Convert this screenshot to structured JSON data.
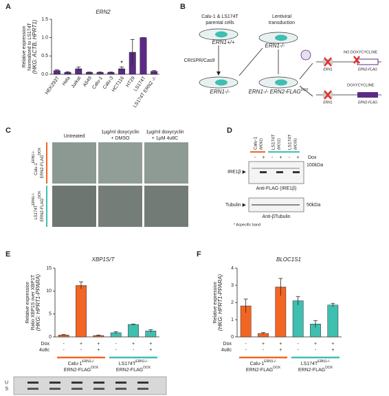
{
  "panel_letters": [
    "A",
    "B",
    "C",
    "D",
    "E",
    "F"
  ],
  "chart_data": [
    {
      "type": "bar",
      "title": "ERN2",
      "ylabel": [
        "Relative expression",
        "Normalized to LS174T",
        "(HKG: ACTB, HPRT1)"
      ],
      "categories": [
        "HEK293T",
        "Hela",
        "Jurkat",
        "A549",
        "Calu-1",
        "Calu-3",
        "HCT116",
        "HT29",
        "LS174T",
        "LS174T ERN2 -/-"
      ],
      "values": [
        0.1,
        0.05,
        0.15,
        0.05,
        0.05,
        0.05,
        0.15,
        0.6,
        1.0,
        0.08
      ],
      "errors": [
        0.02,
        0.02,
        0.05,
        0.01,
        0.01,
        0.01,
        0.05,
        0.35,
        0.0,
        0.02
      ],
      "color": "#5b2a86",
      "annotation": "*",
      "ylim": [
        0,
        1.5
      ],
      "yticks": [
        {
          "value": 0,
          "label": "0.0"
        },
        {
          "value": 0.5,
          "label": "0.5"
        },
        {
          "value": 1,
          "label": "1.0"
        },
        {
          "value": 1.5,
          "label": "1.5"
        }
      ]
    },
    {
      "type": "bar",
      "title": "XBP1S/T",
      "ylabel": [
        "Relative expression",
        "Ratio XBP1S over XBP1T",
        "(HKG: HPRT1-PPARA)"
      ],
      "values": [
        0.4,
        11.2,
        0.3,
        0.9,
        2.7,
        1.3
      ],
      "errors": [
        0.1,
        0.8,
        0.1,
        0.2,
        0.1,
        0.3
      ],
      "colors": [
        "#f26522",
        "#f26522",
        "#f26522",
        "#3fbfb0",
        "#3fbfb0",
        "#3fbfb0"
      ],
      "rows": [
        {
          "name": "Dox",
          "values": [
            "-",
            "+",
            "+",
            "-",
            "+",
            "+"
          ]
        },
        {
          "name": "4u8c",
          "values": [
            "-",
            "-",
            "+",
            "-",
            "-",
            "+"
          ]
        }
      ],
      "groups": [
        {
          "label": "Calu-1",
          "sup": "ERN1-/-",
          "label2": "ERN2-FLAG",
          "sup2": "DOX",
          "color": "#f26522"
        },
        {
          "label": "LS174T",
          "sup": "ERN1-/-",
          "label2": "ERN2-FLAG",
          "sup2": "DOX",
          "color": "#3fbfb0"
        }
      ],
      "gel_labels": [
        "U",
        "S"
      ],
      "ylim": [
        0,
        15
      ],
      "yticks": [
        0,
        5,
        10,
        15
      ]
    },
    {
      "type": "bar",
      "title": "BLOC1S1",
      "ylabel": [
        "Relative expression",
        "(HKG: HPRT1-PPARA)"
      ],
      "values": [
        1.8,
        0.2,
        2.9,
        2.1,
        0.75,
        1.85
      ],
      "errors": [
        0.4,
        0.05,
        0.5,
        0.25,
        0.2,
        0.1
      ],
      "colors": [
        "#f26522",
        "#f26522",
        "#f26522",
        "#3fbfb0",
        "#3fbfb0",
        "#3fbfb0"
      ],
      "rows": [
        {
          "name": "Dox",
          "values": [
            "-",
            "+",
            "+",
            "-",
            "+",
            "+"
          ]
        },
        {
          "name": "4u8c",
          "values": [
            "-",
            "-",
            "+",
            "-",
            "-",
            "+"
          ]
        }
      ],
      "groups": [
        {
          "label": "Calu-1",
          "sup": "ERN1-/-",
          "label2": "ERN2-FLAG",
          "sup2": "DOX",
          "color": "#f26522"
        },
        {
          "label": "LS174T",
          "sup": "ERN1-/-",
          "label2": "ERN2-FLAG",
          "sup2": "DOX",
          "color": "#3fbfb0"
        }
      ],
      "ylim": [
        0,
        4
      ],
      "yticks": [
        0,
        1,
        2,
        3,
        4
      ]
    }
  ],
  "diagram": {
    "parental": [
      "Calu-1 & LS174T",
      "parental cells"
    ],
    "wt": "ERN1+/+",
    "crispr": "CRISPR/Cas9",
    "ko": "ERN1-/-",
    "lenti": [
      "Lentiviral",
      "transduction"
    ],
    "ko2": "ERN1-/-",
    "final": "ERN1-/- ERN2-FLAG",
    "final_sup": "DOX",
    "no_dox": "NO DOXYCYCLINE",
    "dox": "DOXYCYCLINE",
    "gene1": "ERN1",
    "gene2": "ERN2-FLAG"
  },
  "micrographs": {
    "columns": [
      "Untreated",
      "1µg/ml doxycyclin",
      "+ DMSO",
      "1µg/ml doxycyclin",
      "+ 1µM 4u8C"
    ],
    "rows": [
      {
        "label": "Calu-1",
        "sup": "ERN1-/-",
        "label2": "ERN2-FLAG",
        "sup2": "DOX"
      },
      {
        "label": "LS174T",
        "sup": "ERN1-/-",
        "label2": "ERN2-FLAG",
        "sup2": "DOX"
      }
    ]
  },
  "blot": {
    "lanes": [
      {
        "name": "Calu-1",
        "clone": "(MO62)"
      },
      {
        "name": "LS174T",
        "clone": "(MO12)"
      },
      {
        "name": "LS174T",
        "clone": "(MO35)"
      }
    ],
    "signs": [
      "-",
      "+",
      "-",
      "+",
      "-",
      "+"
    ],
    "dox": "Dox",
    "band1": "IRE1β ▶",
    "size1": "100kDa",
    "ab1": "Anti-FLAG (IRE1β)",
    "band2": "Tubulin ▶",
    "size2": "50kDa",
    "ab2": "Anti-βTubulin",
    "note": "* Aspecific band"
  }
}
